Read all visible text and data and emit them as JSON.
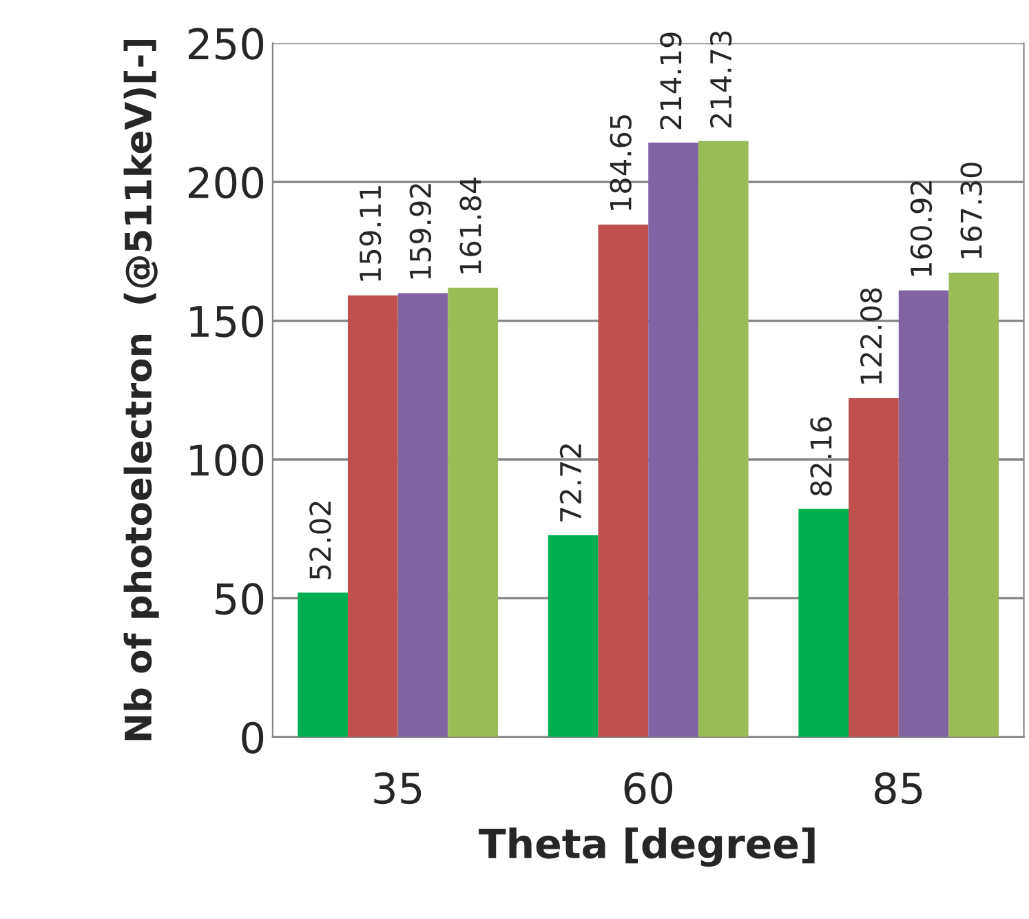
{
  "chart_data": {
    "type": "bar",
    "xlabel": "Theta [degree]",
    "ylabel": "Nb of photoelectron  (@511keV)[-]",
    "categories": [
      "35",
      "60",
      "85"
    ],
    "series": [
      {
        "color": "#00b050",
        "values": [
          52.02,
          72.72,
          82.16
        ],
        "value_labels": [
          "52.02",
          "72.72",
          "82.16"
        ]
      },
      {
        "color": "#c0504d",
        "values": [
          159.11,
          184.65,
          122.08
        ],
        "value_labels": [
          "159.11",
          "184.65",
          "122.08"
        ]
      },
      {
        "color": "#8064a2",
        "values": [
          159.92,
          214.19,
          160.92
        ],
        "value_labels": [
          "159.92",
          "214.19",
          "160.92"
        ]
      },
      {
        "color": "#9bbb59",
        "values": [
          161.84,
          214.73,
          167.3
        ],
        "value_labels": [
          "161.84",
          "214.73",
          "167.30"
        ]
      }
    ],
    "ylim": [
      0,
      250
    ],
    "yticks": [
      0,
      50,
      100,
      150,
      200,
      250
    ],
    "grid": "y",
    "legend": false
  }
}
